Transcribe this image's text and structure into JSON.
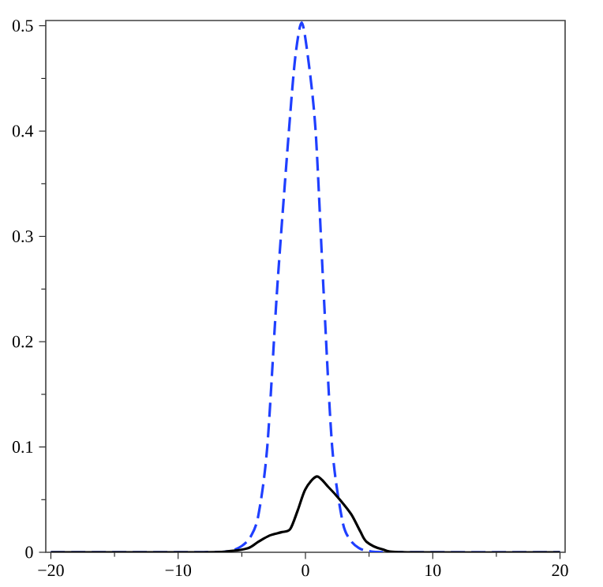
{
  "chart_data": {
    "type": "line",
    "xlim": [
      -20.4,
      20.4
    ],
    "ylim": [
      0,
      0.505
    ],
    "xticks": [
      {
        "value": -20,
        "label": "−20"
      },
      {
        "value": -10,
        "label": "−10"
      },
      0,
      10,
      20
    ],
    "yticks": [
      0,
      0.1,
      0.2,
      0.3,
      0.4,
      0.5
    ],
    "grid": false,
    "marker": "none",
    "series": [
      {
        "color": "#1f3fff",
        "line_style": "dashed",
        "x": [
          -20,
          -8,
          -6,
          -5,
          -4.3,
          -3.7,
          -3,
          -2.2,
          -1.3,
          -0.8,
          -0.3,
          0.2,
          0.8,
          1.4,
          2.1,
          2.9,
          3.5,
          4.2,
          5,
          7,
          20
        ],
        "values": [
          0,
          0,
          0.001,
          0.006,
          0.015,
          0.035,
          0.1,
          0.254,
          0.4,
          0.47,
          0.503,
          0.47,
          0.4,
          0.254,
          0.1,
          0.03,
          0.012,
          0.004,
          0.001,
          0,
          0
        ]
      },
      {
        "color": "#000000",
        "line_style": "solid",
        "x": [
          -20,
          -8,
          -6,
          -4.5,
          -3.7,
          -2.8,
          -1.9,
          -1.2,
          -0.6,
          0,
          0.9,
          1.8,
          2.7,
          3.6,
          4.3,
          4.8,
          6,
          8,
          20
        ],
        "values": [
          0,
          0,
          0.001,
          0.004,
          0.01,
          0.016,
          0.019,
          0.022,
          0.04,
          0.06,
          0.072,
          0.062,
          0.05,
          0.036,
          0.02,
          0.01,
          0.003,
          0,
          0
        ]
      }
    ]
  }
}
